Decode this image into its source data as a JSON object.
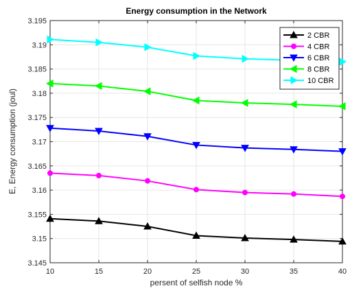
{
  "chart_data": {
    "type": "line",
    "title": "Energy consumption in the Network",
    "xlabel": "persent of selfish node %",
    "ylabel": "E, Energy consumption (joul)",
    "x": [
      10,
      15,
      20,
      25,
      30,
      35,
      40
    ],
    "xlim": [
      10,
      40
    ],
    "ylim": [
      3.145,
      3.195
    ],
    "xticks": [
      "10",
      "15",
      "20",
      "25",
      "30",
      "35",
      "40"
    ],
    "yticks": [
      "3.145",
      "3.15",
      "3.155",
      "3.16",
      "3.165",
      "3.17",
      "3.175",
      "3.18",
      "3.185",
      "3.19",
      "3.195"
    ],
    "grid": true,
    "legend_position": "top-right",
    "series": [
      {
        "name": "2 CBR",
        "color": "#000000",
        "marker": "triangle-up",
        "values": [
          3.1541,
          3.1536,
          3.1525,
          3.1506,
          3.1501,
          3.1498,
          3.1494
        ]
      },
      {
        "name": "4 CBR",
        "color": "#ff00ff",
        "marker": "circle",
        "values": [
          3.1635,
          3.163,
          3.1619,
          3.1601,
          3.1595,
          3.1592,
          3.1587
        ]
      },
      {
        "name": "6 CBR",
        "color": "#0000ff",
        "marker": "triangle-down",
        "values": [
          3.1728,
          3.1722,
          3.1711,
          3.1693,
          3.1687,
          3.1684,
          3.168
        ]
      },
      {
        "name": "8 CBR",
        "color": "#00ff00",
        "marker": "triangle-left",
        "values": [
          3.182,
          3.1815,
          3.1804,
          3.1785,
          3.178,
          3.1777,
          3.1773
        ]
      },
      {
        "name": "10 CBR",
        "color": "#00ffff",
        "marker": "triangle-right",
        "values": [
          3.1911,
          3.1905,
          3.1895,
          3.1877,
          3.1871,
          3.1868,
          3.1865
        ]
      }
    ]
  }
}
